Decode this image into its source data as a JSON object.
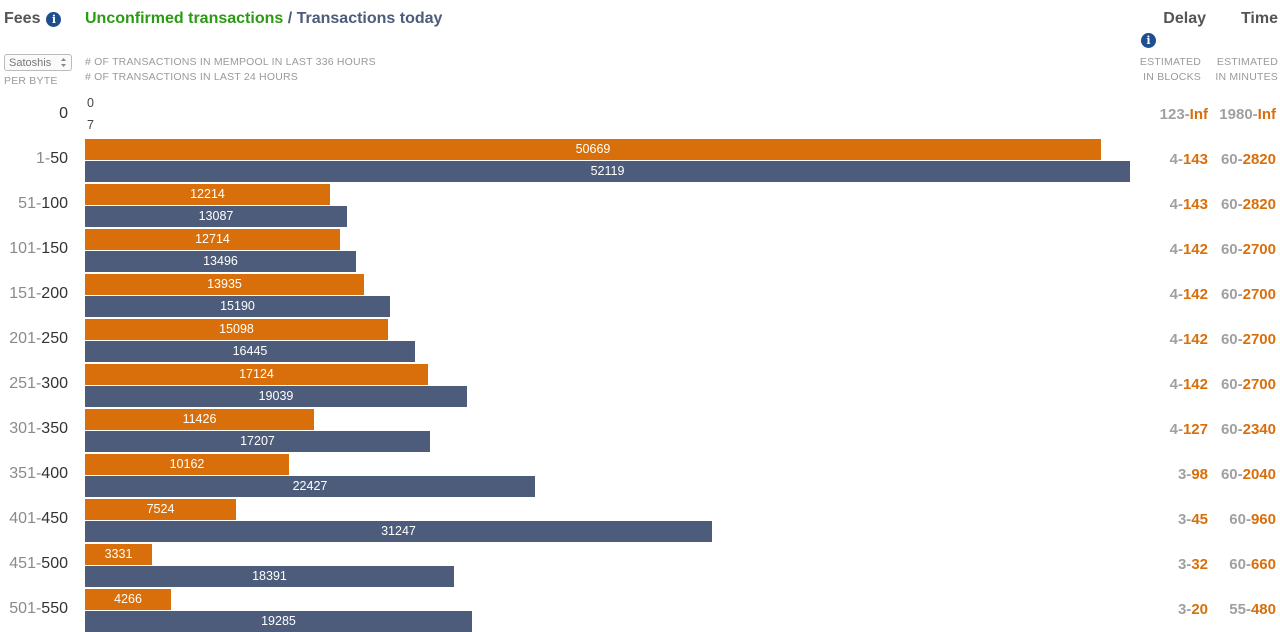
{
  "header": {
    "fees_label": "Fees",
    "title_unconfirmed": "Unconfirmed transactions",
    "title_separator": " / ",
    "title_today": "Transactions today",
    "delay_label": "Delay",
    "time_label": "Time",
    "info_glyph": "i"
  },
  "unit_select": {
    "value": "Satoshis"
  },
  "per_byte_label": "PER BYTE",
  "descriptions": {
    "mempool": "# OF TRANSACTIONS IN MEMPOOL IN LAST 336 HOURS",
    "today": "# OF TRANSACTIONS IN LAST 24 HOURS"
  },
  "delay_caption": {
    "line1": "ESTIMATED",
    "line2": "IN BLOCKS"
  },
  "time_caption": {
    "line1": "ESTIMATED",
    "line2": "IN MINUTES"
  },
  "colors": {
    "unconfirmed": "#d96f0a",
    "today": "#4d5c7a",
    "title_green": "#2c9b14"
  },
  "chart_data": {
    "type": "bar",
    "orientation": "horizontal",
    "categories": [
      "0",
      "1-50",
      "51-100",
      "101-150",
      "151-200",
      "201-250",
      "251-300",
      "301-350",
      "351-400",
      "401-450",
      "451-500",
      "501-550"
    ],
    "series": [
      {
        "name": "Unconfirmed transactions",
        "values": [
          0,
          50669,
          12214,
          12714,
          13935,
          15098,
          17124,
          11426,
          10162,
          7524,
          3331,
          4266
        ]
      },
      {
        "name": "Transactions today",
        "values": [
          7,
          52119,
          13087,
          13496,
          15190,
          16445,
          19039,
          17207,
          22427,
          31247,
          18391,
          19285
        ]
      }
    ],
    "xlim": [
      0,
      52119
    ]
  },
  "rows": [
    {
      "fee_lo": "0",
      "fee_sep": "",
      "fee_hi": "",
      "delay_lo": "123-",
      "delay_hi": "Inf",
      "time_lo": "1980-",
      "time_hi": "Inf"
    },
    {
      "fee_lo": "1",
      "fee_sep": "-",
      "fee_hi": "50",
      "delay_lo": "4-",
      "delay_hi": "143",
      "time_lo": "60-",
      "time_hi": "2820"
    },
    {
      "fee_lo": "51",
      "fee_sep": "-",
      "fee_hi": "100",
      "delay_lo": "4-",
      "delay_hi": "143",
      "time_lo": "60-",
      "time_hi": "2820"
    },
    {
      "fee_lo": "101",
      "fee_sep": "-",
      "fee_hi": "150",
      "delay_lo": "4-",
      "delay_hi": "142",
      "time_lo": "60-",
      "time_hi": "2700"
    },
    {
      "fee_lo": "151",
      "fee_sep": "-",
      "fee_hi": "200",
      "delay_lo": "4-",
      "delay_hi": "142",
      "time_lo": "60-",
      "time_hi": "2700"
    },
    {
      "fee_lo": "201",
      "fee_sep": "-",
      "fee_hi": "250",
      "delay_lo": "4-",
      "delay_hi": "142",
      "time_lo": "60-",
      "time_hi": "2700"
    },
    {
      "fee_lo": "251",
      "fee_sep": "-",
      "fee_hi": "300",
      "delay_lo": "4-",
      "delay_hi": "142",
      "time_lo": "60-",
      "time_hi": "2700"
    },
    {
      "fee_lo": "301",
      "fee_sep": "-",
      "fee_hi": "350",
      "delay_lo": "4-",
      "delay_hi": "127",
      "time_lo": "60-",
      "time_hi": "2340"
    },
    {
      "fee_lo": "351",
      "fee_sep": "-",
      "fee_hi": "400",
      "delay_lo": "3-",
      "delay_hi": "98",
      "time_lo": "60-",
      "time_hi": "2040"
    },
    {
      "fee_lo": "401",
      "fee_sep": "-",
      "fee_hi": "450",
      "delay_lo": "3-",
      "delay_hi": "45",
      "time_lo": "60-",
      "time_hi": "960"
    },
    {
      "fee_lo": "451",
      "fee_sep": "-",
      "fee_hi": "500",
      "delay_lo": "3-",
      "delay_hi": "32",
      "time_lo": "60-",
      "time_hi": "660"
    },
    {
      "fee_lo": "501",
      "fee_sep": "-",
      "fee_hi": "550",
      "delay_lo": "3-",
      "delay_hi": "20",
      "time_lo": "55-",
      "time_hi": "480"
    }
  ]
}
